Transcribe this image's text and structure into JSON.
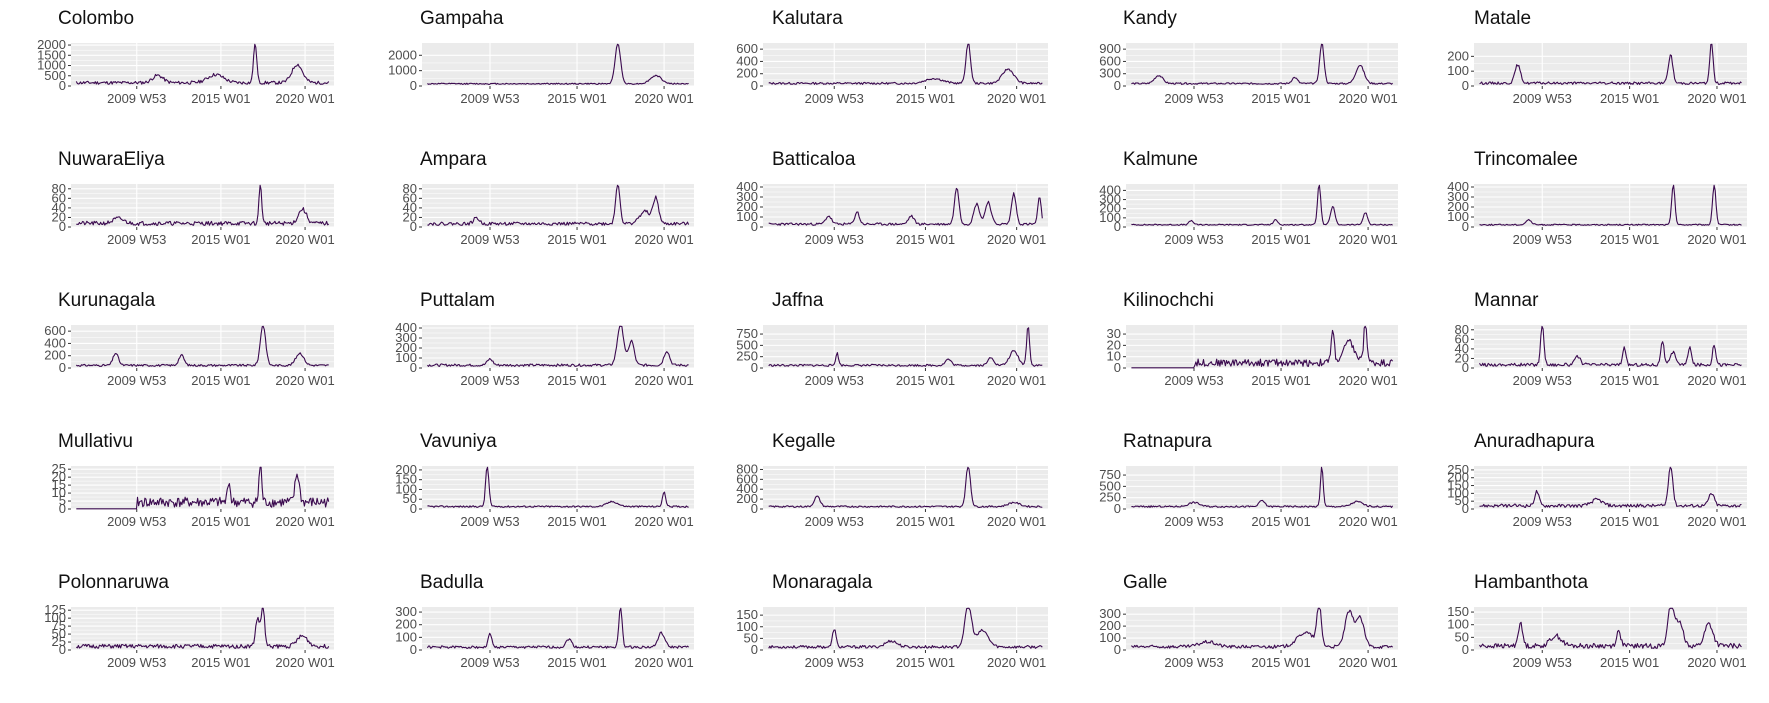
{
  "line_color": "#3b0a4f",
  "panel_background": "#ebebeb",
  "grid_color": "#ffffff",
  "chart_data": [
    {
      "type": "line",
      "title": "Colombo",
      "xlabel": "",
      "ylabel": "",
      "x_ticks": [
        "2009 W53",
        "2015 W01",
        "2020 W01"
      ],
      "y_ticks": [
        0,
        500,
        1000,
        1500,
        2000
      ],
      "ylim": [
        0,
        2100
      ],
      "peaks": [
        {
          "pos": 0.7,
          "h": 1.0,
          "w": 0.006
        },
        {
          "pos": 0.86,
          "h": 0.45,
          "w": 0.02
        },
        {
          "pos": 0.33,
          "h": 0.18,
          "w": 0.02
        },
        {
          "pos": 0.55,
          "h": 0.2,
          "w": 0.03
        }
      ],
      "noise": 0.08,
      "seed": 11
    },
    {
      "type": "line",
      "title": "Gampaha",
      "xlabel": "",
      "ylabel": "",
      "x_ticks": [
        "2009 W53",
        "2015 W01",
        "2020 W01"
      ],
      "y_ticks": [
        0,
        1000,
        2000
      ],
      "ylim": [
        0,
        2800
      ],
      "peaks": [
        {
          "pos": 0.72,
          "h": 1.0,
          "w": 0.01
        },
        {
          "pos": 0.86,
          "h": 0.2,
          "w": 0.02
        }
      ],
      "noise": 0.03,
      "seed": 12
    },
    {
      "type": "line",
      "title": "Kalutara",
      "xlabel": "",
      "ylabel": "",
      "x_ticks": [
        "2009 W53",
        "2015 W01",
        "2020 W01"
      ],
      "y_ticks": [
        0,
        200,
        400,
        600
      ],
      "ylim": [
        0,
        700
      ],
      "peaks": [
        {
          "pos": 0.72,
          "h": 1.0,
          "w": 0.008
        },
        {
          "pos": 0.86,
          "h": 0.35,
          "w": 0.02
        },
        {
          "pos": 0.6,
          "h": 0.12,
          "w": 0.03
        }
      ],
      "noise": 0.05,
      "seed": 13
    },
    {
      "type": "line",
      "title": "Kandy",
      "xlabel": "",
      "ylabel": "",
      "x_ticks": [
        "2009 W53",
        "2015 W01",
        "2020 W01"
      ],
      "y_ticks": [
        0,
        300,
        600,
        900
      ],
      "ylim": [
        0,
        1050
      ],
      "peaks": [
        {
          "pos": 0.72,
          "h": 1.0,
          "w": 0.008
        },
        {
          "pos": 0.86,
          "h": 0.45,
          "w": 0.015
        },
        {
          "pos": 0.12,
          "h": 0.2,
          "w": 0.015
        },
        {
          "pos": 0.62,
          "h": 0.15,
          "w": 0.01
        }
      ],
      "noise": 0.04,
      "seed": 14
    },
    {
      "type": "line",
      "title": "Matale",
      "xlabel": "",
      "ylabel": "",
      "x_ticks": [
        "2009 W53",
        "2015 W01",
        "2020 W01"
      ],
      "y_ticks": [
        0,
        100,
        200
      ],
      "ylim": [
        0,
        290
      ],
      "peaks": [
        {
          "pos": 0.87,
          "h": 1.0,
          "w": 0.006
        },
        {
          "pos": 0.72,
          "h": 0.7,
          "w": 0.008
        },
        {
          "pos": 0.16,
          "h": 0.45,
          "w": 0.01
        }
      ],
      "noise": 0.06,
      "seed": 15
    },
    {
      "type": "line",
      "title": "NuwaraEliya",
      "xlabel": "",
      "ylabel": "",
      "x_ticks": [
        "2009 W53",
        "2015 W01",
        "2020 W01"
      ],
      "y_ticks": [
        0,
        20,
        40,
        60,
        80
      ],
      "ylim": [
        0,
        90
      ],
      "peaks": [
        {
          "pos": 0.72,
          "h": 1.0,
          "w": 0.005
        },
        {
          "pos": 0.88,
          "h": 0.35,
          "w": 0.015
        },
        {
          "pos": 0.18,
          "h": 0.12,
          "w": 0.02
        }
      ],
      "noise": 0.1,
      "seed": 21
    },
    {
      "type": "line",
      "title": "Ampara",
      "xlabel": "",
      "ylabel": "",
      "x_ticks": [
        "2009 W53",
        "2015 W01",
        "2020 W01"
      ],
      "y_ticks": [
        0,
        20,
        40,
        60,
        80
      ],
      "ylim": [
        0,
        90
      ],
      "peaks": [
        {
          "pos": 0.72,
          "h": 1.0,
          "w": 0.008
        },
        {
          "pos": 0.86,
          "h": 0.6,
          "w": 0.01
        },
        {
          "pos": 0.82,
          "h": 0.3,
          "w": 0.02
        },
        {
          "pos": 0.2,
          "h": 0.15,
          "w": 0.01
        }
      ],
      "noise": 0.08,
      "seed": 22
    },
    {
      "type": "line",
      "title": "Batticaloa",
      "xlabel": "",
      "ylabel": "",
      "x_ticks": [
        "2009 W53",
        "2015 W01",
        "2020 W01"
      ],
      "y_ticks": [
        0,
        100,
        200,
        300,
        400
      ],
      "ylim": [
        0,
        430
      ],
      "peaks": [
        {
          "pos": 0.68,
          "h": 0.9,
          "w": 0.008
        },
        {
          "pos": 0.88,
          "h": 0.75,
          "w": 0.008
        },
        {
          "pos": 0.97,
          "h": 0.65,
          "w": 0.006
        },
        {
          "pos": 0.75,
          "h": 0.5,
          "w": 0.01
        },
        {
          "pos": 0.79,
          "h": 0.55,
          "w": 0.01
        },
        {
          "pos": 0.33,
          "h": 0.3,
          "w": 0.008
        },
        {
          "pos": 0.23,
          "h": 0.2,
          "w": 0.01
        },
        {
          "pos": 0.52,
          "h": 0.2,
          "w": 0.01
        }
      ],
      "noise": 0.06,
      "seed": 23
    },
    {
      "type": "line",
      "title": "Kalmune",
      "xlabel": "",
      "ylabel": "",
      "x_ticks": [
        "2009 W53",
        "2015 W01",
        "2020 W01"
      ],
      "y_ticks": [
        0,
        100,
        200,
        300,
        400
      ],
      "ylim": [
        0,
        470
      ],
      "peaks": [
        {
          "pos": 0.71,
          "h": 1.0,
          "w": 0.006
        },
        {
          "pos": 0.76,
          "h": 0.45,
          "w": 0.008
        },
        {
          "pos": 0.88,
          "h": 0.3,
          "w": 0.008
        },
        {
          "pos": 0.24,
          "h": 0.1,
          "w": 0.008
        },
        {
          "pos": 0.55,
          "h": 0.12,
          "w": 0.008
        }
      ],
      "noise": 0.03,
      "seed": 24
    },
    {
      "type": "line",
      "title": "Trincomalee",
      "xlabel": "",
      "ylabel": "",
      "x_ticks": [
        "2009 W53",
        "2015 W01",
        "2020 W01"
      ],
      "y_ticks": [
        0,
        100,
        200,
        300,
        400
      ],
      "ylim": [
        0,
        430
      ],
      "peaks": [
        {
          "pos": 0.73,
          "h": 1.0,
          "w": 0.006
        },
        {
          "pos": 0.88,
          "h": 1.0,
          "w": 0.006
        },
        {
          "pos": 0.2,
          "h": 0.12,
          "w": 0.01
        }
      ],
      "noise": 0.03,
      "seed": 25
    },
    {
      "type": "line",
      "title": "Kurunagala",
      "xlabel": "",
      "ylabel": "",
      "x_ticks": [
        "2009 W53",
        "2015 W01",
        "2020 W01"
      ],
      "y_ticks": [
        0,
        200,
        400,
        600
      ],
      "ylim": [
        0,
        700
      ],
      "peaks": [
        {
          "pos": 0.73,
          "h": 1.0,
          "w": 0.01
        },
        {
          "pos": 0.87,
          "h": 0.3,
          "w": 0.015
        },
        {
          "pos": 0.17,
          "h": 0.3,
          "w": 0.01
        },
        {
          "pos": 0.42,
          "h": 0.25,
          "w": 0.01
        }
      ],
      "noise": 0.05,
      "seed": 31
    },
    {
      "type": "line",
      "title": "Puttalam",
      "xlabel": "",
      "ylabel": "",
      "x_ticks": [
        "2009 W53",
        "2015 W01",
        "2020 W01"
      ],
      "y_ticks": [
        0,
        100,
        200,
        300,
        400
      ],
      "ylim": [
        0,
        430
      ],
      "peaks": [
        {
          "pos": 0.73,
          "h": 1.0,
          "w": 0.012
        },
        {
          "pos": 0.77,
          "h": 0.6,
          "w": 0.01
        },
        {
          "pos": 0.9,
          "h": 0.35,
          "w": 0.01
        },
        {
          "pos": 0.25,
          "h": 0.15,
          "w": 0.01
        }
      ],
      "noise": 0.06,
      "seed": 32
    },
    {
      "type": "line",
      "title": "Jaffna",
      "xlabel": "",
      "ylabel": "",
      "x_ticks": [
        "2009 W53",
        "2015 W01",
        "2020 W01"
      ],
      "y_ticks": [
        0,
        250,
        500,
        750
      ],
      "ylim": [
        0,
        950
      ],
      "peaks": [
        {
          "pos": 0.93,
          "h": 1.0,
          "w": 0.005
        },
        {
          "pos": 0.88,
          "h": 0.35,
          "w": 0.015
        },
        {
          "pos": 0.26,
          "h": 0.3,
          "w": 0.005
        },
        {
          "pos": 0.65,
          "h": 0.15,
          "w": 0.01
        },
        {
          "pos": 0.8,
          "h": 0.2,
          "w": 0.01
        }
      ],
      "noise": 0.05,
      "seed": 33
    },
    {
      "type": "line",
      "title": "Kilinochchi",
      "xlabel": "",
      "ylabel": "",
      "x_ticks": [
        "2009 W53",
        "2015 W01",
        "2020 W01"
      ],
      "y_ticks": [
        0,
        10,
        20,
        30
      ],
      "ylim": [
        0,
        38
      ],
      "peaks": [
        {
          "pos": 0.88,
          "h": 1.0,
          "w": 0.006
        },
        {
          "pos": 0.76,
          "h": 0.75,
          "w": 0.006
        },
        {
          "pos": 0.82,
          "h": 0.5,
          "w": 0.02
        }
      ],
      "noise": 0.18,
      "start": 0.25,
      "seed": 34
    },
    {
      "type": "line",
      "title": "Mannar",
      "xlabel": "",
      "ylabel": "",
      "x_ticks": [
        "2009 W53",
        "2015 W01",
        "2020 W01"
      ],
      "y_ticks": [
        0,
        20,
        40,
        60,
        80
      ],
      "ylim": [
        0,
        90
      ],
      "peaks": [
        {
          "pos": 0.25,
          "h": 1.0,
          "w": 0.006
        },
        {
          "pos": 0.69,
          "h": 0.6,
          "w": 0.006
        },
        {
          "pos": 0.88,
          "h": 0.5,
          "w": 0.006
        },
        {
          "pos": 0.79,
          "h": 0.45,
          "w": 0.006
        },
        {
          "pos": 0.55,
          "h": 0.4,
          "w": 0.006
        },
        {
          "pos": 0.38,
          "h": 0.2,
          "w": 0.01
        },
        {
          "pos": 0.73,
          "h": 0.3,
          "w": 0.01
        }
      ],
      "noise": 0.08,
      "seed": 35
    },
    {
      "type": "line",
      "title": "Mullativu",
      "xlabel": "",
      "ylabel": "",
      "x_ticks": [
        "2009 W53",
        "2015 W01",
        "2020 W01"
      ],
      "y_ticks": [
        0,
        5,
        10,
        15,
        20,
        25
      ],
      "ylim": [
        0,
        27
      ],
      "peaks": [
        {
          "pos": 0.72,
          "h": 1.0,
          "w": 0.005
        },
        {
          "pos": 0.86,
          "h": 0.7,
          "w": 0.008
        },
        {
          "pos": 0.6,
          "h": 0.55,
          "w": 0.005
        }
      ],
      "noise": 0.25,
      "start": 0.25,
      "seed": 41
    },
    {
      "type": "line",
      "title": "Vavuniya",
      "xlabel": "",
      "ylabel": "",
      "x_ticks": [
        "2009 W53",
        "2015 W01",
        "2020 W01"
      ],
      "y_ticks": [
        0,
        50,
        100,
        150,
        200
      ],
      "ylim": [
        0,
        220
      ],
      "peaks": [
        {
          "pos": 0.24,
          "h": 1.0,
          "w": 0.006
        },
        {
          "pos": 0.89,
          "h": 0.35,
          "w": 0.006
        },
        {
          "pos": 0.7,
          "h": 0.12,
          "w": 0.02
        }
      ],
      "noise": 0.04,
      "seed": 42
    },
    {
      "type": "line",
      "title": "Kegalle",
      "xlabel": "",
      "ylabel": "",
      "x_ticks": [
        "2009 W53",
        "2015 W01",
        "2020 W01"
      ],
      "y_ticks": [
        0,
        200,
        400,
        600,
        800
      ],
      "ylim": [
        0,
        870
      ],
      "peaks": [
        {
          "pos": 0.72,
          "h": 1.0,
          "w": 0.008
        },
        {
          "pos": 0.19,
          "h": 0.25,
          "w": 0.01
        },
        {
          "pos": 0.88,
          "h": 0.1,
          "w": 0.02
        }
      ],
      "noise": 0.04,
      "seed": 43
    },
    {
      "type": "line",
      "title": "Ratnapura",
      "xlabel": "",
      "ylabel": "",
      "x_ticks": [
        "2009 W53",
        "2015 W01",
        "2020 W01"
      ],
      "y_ticks": [
        0,
        250,
        500,
        750
      ],
      "ylim": [
        0,
        950
      ],
      "peaks": [
        {
          "pos": 0.72,
          "h": 1.0,
          "w": 0.005
        },
        {
          "pos": 0.5,
          "h": 0.15,
          "w": 0.01
        },
        {
          "pos": 0.85,
          "h": 0.12,
          "w": 0.02
        },
        {
          "pos": 0.25,
          "h": 0.1,
          "w": 0.02
        }
      ],
      "noise": 0.04,
      "seed": 44
    },
    {
      "type": "line",
      "title": "Anuradhapura",
      "xlabel": "",
      "ylabel": "",
      "x_ticks": [
        "2009 W53",
        "2015 W01",
        "2020 W01"
      ],
      "y_ticks": [
        0,
        50,
        100,
        150,
        200,
        250
      ],
      "ylim": [
        0,
        275
      ],
      "peaks": [
        {
          "pos": 0.72,
          "h": 1.0,
          "w": 0.008
        },
        {
          "pos": 0.23,
          "h": 0.35,
          "w": 0.008
        },
        {
          "pos": 0.87,
          "h": 0.3,
          "w": 0.01
        },
        {
          "pos": 0.45,
          "h": 0.15,
          "w": 0.02
        }
      ],
      "noise": 0.08,
      "seed": 45
    },
    {
      "type": "line",
      "title": "Polonnaruwa",
      "xlabel": "",
      "ylabel": "",
      "x_ticks": [
        "2009 W53",
        "2015 W01",
        "2020 W01"
      ],
      "y_ticks": [
        0,
        25,
        50,
        75,
        100,
        125
      ],
      "ylim": [
        0,
        135
      ],
      "peaks": [
        {
          "pos": 0.73,
          "h": 1.0,
          "w": 0.006
        },
        {
          "pos": 0.71,
          "h": 0.7,
          "w": 0.008
        },
        {
          "pos": 0.88,
          "h": 0.25,
          "w": 0.02
        }
      ],
      "noise": 0.1,
      "seed": 51
    },
    {
      "type": "line",
      "title": "Badulla",
      "xlabel": "",
      "ylabel": "",
      "x_ticks": [
        "2009 W53",
        "2015 W01",
        "2020 W01"
      ],
      "y_ticks": [
        0,
        100,
        200,
        300
      ],
      "ylim": [
        0,
        340
      ],
      "peaks": [
        {
          "pos": 0.73,
          "h": 1.0,
          "w": 0.006
        },
        {
          "pos": 0.88,
          "h": 0.35,
          "w": 0.012
        },
        {
          "pos": 0.25,
          "h": 0.35,
          "w": 0.006
        },
        {
          "pos": 0.54,
          "h": 0.2,
          "w": 0.01
        }
      ],
      "noise": 0.06,
      "seed": 52
    },
    {
      "type": "line",
      "title": "Monaragala",
      "xlabel": "",
      "ylabel": "",
      "x_ticks": [
        "2009 W53",
        "2015 W01",
        "2020 W01"
      ],
      "y_ticks": [
        0,
        50,
        100,
        150
      ],
      "ylim": [
        0,
        185
      ],
      "peaks": [
        {
          "pos": 0.72,
          "h": 1.0,
          "w": 0.012
        },
        {
          "pos": 0.25,
          "h": 0.45,
          "w": 0.006
        },
        {
          "pos": 0.77,
          "h": 0.4,
          "w": 0.02
        },
        {
          "pos": 0.45,
          "h": 0.15,
          "w": 0.02
        }
      ],
      "noise": 0.07,
      "seed": 53
    },
    {
      "type": "line",
      "title": "Galle",
      "xlabel": "",
      "ylabel": "",
      "x_ticks": [
        "2009 W53",
        "2015 W01",
        "2020 W01"
      ],
      "y_ticks": [
        0,
        100,
        200,
        300
      ],
      "ylim": [
        0,
        360
      ],
      "peaks": [
        {
          "pos": 0.71,
          "h": 1.0,
          "w": 0.008
        },
        {
          "pos": 0.82,
          "h": 0.85,
          "w": 0.015
        },
        {
          "pos": 0.86,
          "h": 0.7,
          "w": 0.015
        },
        {
          "pos": 0.66,
          "h": 0.35,
          "w": 0.03
        },
        {
          "pos": 0.3,
          "h": 0.12,
          "w": 0.03
        }
      ],
      "noise": 0.08,
      "seed": 54
    },
    {
      "type": "line",
      "title": "Hambanthota",
      "xlabel": "",
      "ylabel": "",
      "x_ticks": [
        "2009 W53",
        "2015 W01",
        "2020 W01"
      ],
      "y_ticks": [
        0,
        50,
        100,
        150
      ],
      "ylim": [
        0,
        170
      ],
      "peaks": [
        {
          "pos": 0.72,
          "h": 1.0,
          "w": 0.01
        },
        {
          "pos": 0.75,
          "h": 0.6,
          "w": 0.015
        },
        {
          "pos": 0.86,
          "h": 0.55,
          "w": 0.015
        },
        {
          "pos": 0.17,
          "h": 0.55,
          "w": 0.008
        },
        {
          "pos": 0.53,
          "h": 0.35,
          "w": 0.008
        },
        {
          "pos": 0.3,
          "h": 0.25,
          "w": 0.02
        }
      ],
      "noise": 0.12,
      "seed": 55
    }
  ]
}
